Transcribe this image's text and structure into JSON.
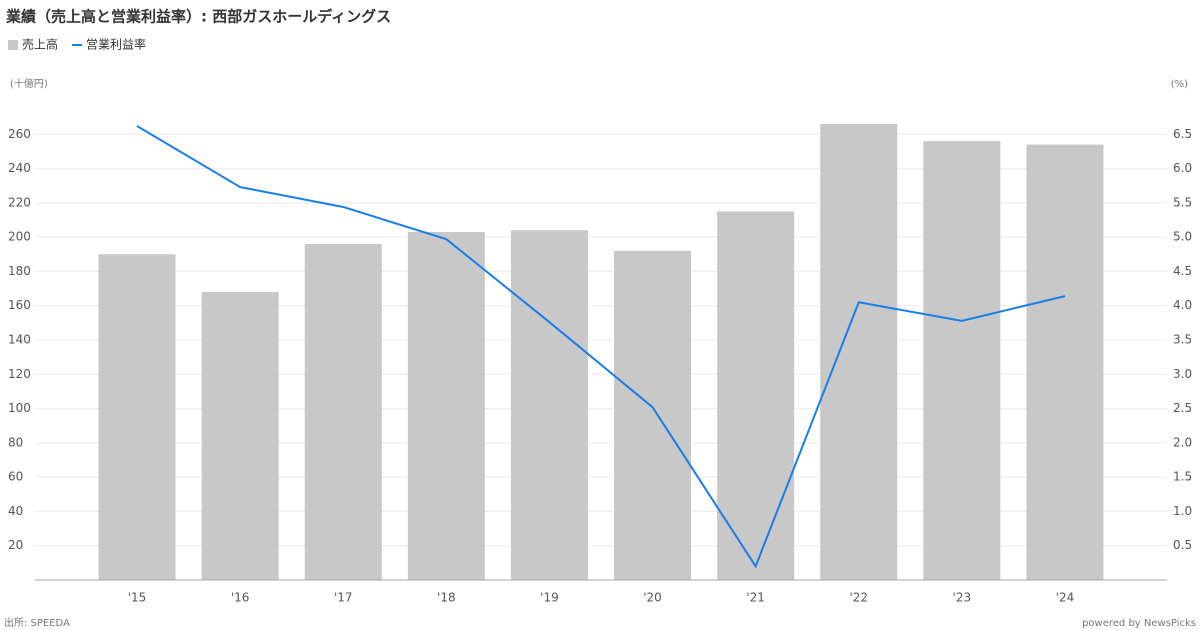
{
  "chart_data": {
    "type": "bar-line",
    "title": "業績（売上高と営業利益率）: 西部ガスホールディングス",
    "y_unit": "(十億円)",
    "y2_unit": "(%)",
    "source": "出所: SPEEDA",
    "credit": "powered by NewsPicks",
    "categories": [
      "'15",
      "'16",
      "'17",
      "'18",
      "'19",
      "'20",
      "'21",
      "'22",
      "'23",
      "'24"
    ],
    "series": [
      {
        "name": "売上高",
        "type": "bar",
        "color": "#c8c8c8",
        "values": [
          190,
          168,
          196,
          203,
          204,
          192,
          215,
          266,
          256,
          254
        ]
      },
      {
        "name": "営業利益率",
        "type": "line",
        "axis": "y2",
        "color": "#1a7ee8",
        "values": [
          6.62,
          5.73,
          5.44,
          4.97,
          3.76,
          2.52,
          0.2,
          4.05,
          3.78,
          4.14
        ]
      }
    ],
    "ylim": [
      0,
      280
    ],
    "yticks": [
      20,
      40,
      60,
      80,
      100,
      120,
      140,
      160,
      180,
      200,
      220,
      240,
      260
    ],
    "y2lim": [
      0,
      7
    ],
    "y2ticks": [
      0.5,
      {
        "value": 1,
        "label": "1.0"
      },
      1.5,
      {
        "value": 2,
        "label": "2.0"
      },
      2.5,
      {
        "value": 3,
        "label": "3.0"
      },
      3.5,
      {
        "value": 4,
        "label": "4.0"
      },
      4.5,
      {
        "value": 5,
        "label": "5.0"
      },
      5.5,
      {
        "value": 6,
        "label": "6.0"
      },
      6.5
    ],
    "grid": true
  }
}
